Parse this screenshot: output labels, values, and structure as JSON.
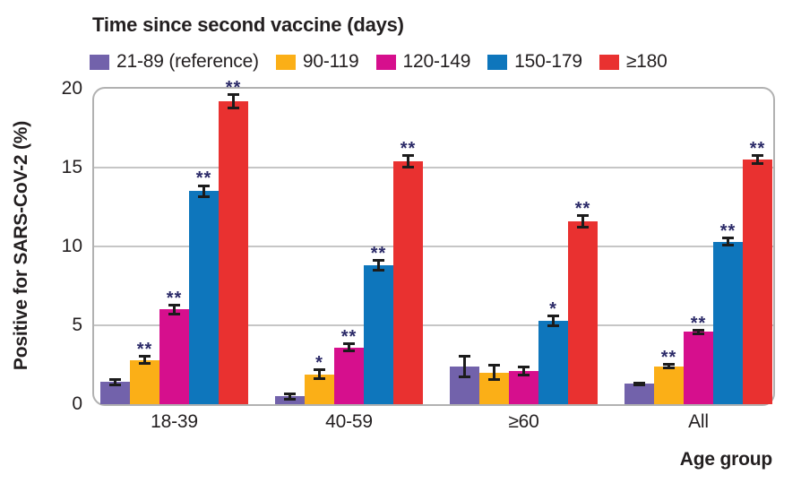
{
  "colors": {
    "purple": "#7262ab",
    "orange": "#fbaf17",
    "magenta": "#d60f8d",
    "blue": "#0e76bc",
    "red": "#e93130",
    "star": "#2b2a68",
    "gridline": "#c6c6c6",
    "frame": "#b1b1b1",
    "text": "#231f20",
    "error_bar": "#1c1c1c"
  },
  "chart_data": {
    "type": "bar",
    "title": "Time since second vaccine (days)",
    "xlabel": "Age group",
    "ylabel": "Positive for SARS-CoV-2 (%)",
    "ylim": [
      0,
      20
    ],
    "yticks": [
      0,
      5,
      10,
      15,
      20
    ],
    "grid": true,
    "legend_position": "top",
    "error_bars": true,
    "categories": [
      "18-39",
      "40-59",
      "≥60",
      "All"
    ],
    "series": [
      {
        "name": "21-89 (reference)",
        "color": "#7262ab",
        "values": [
          1.4,
          0.5,
          2.4,
          1.3
        ],
        "errors": [
          0.25,
          0.25,
          0.75,
          0.15
        ],
        "significance": [
          "",
          "",
          "",
          ""
        ]
      },
      {
        "name": "90-119",
        "color": "#fbaf17",
        "values": [
          2.8,
          1.9,
          2.0,
          2.4
        ],
        "errors": [
          0.3,
          0.35,
          0.55,
          0.2
        ],
        "significance": [
          "**",
          "*",
          "",
          "**"
        ]
      },
      {
        "name": "120-149",
        "color": "#d60f8d",
        "values": [
          6.0,
          3.6,
          2.1,
          4.6
        ],
        "errors": [
          0.35,
          0.3,
          0.35,
          0.2
        ],
        "significance": [
          "**",
          "**",
          "",
          "**"
        ]
      },
      {
        "name": "150-179",
        "color": "#0e76bc",
        "values": [
          13.5,
          8.8,
          5.3,
          10.3
        ],
        "errors": [
          0.45,
          0.4,
          0.4,
          0.3
        ],
        "significance": [
          "**",
          "**",
          "*",
          "**"
        ]
      },
      {
        "name": "≥180",
        "color": "#e93130",
        "values": [
          19.2,
          15.4,
          11.6,
          15.5
        ],
        "errors": [
          0.5,
          0.45,
          0.45,
          0.35
        ],
        "significance": [
          "**",
          "**",
          "**",
          "**"
        ]
      }
    ]
  }
}
